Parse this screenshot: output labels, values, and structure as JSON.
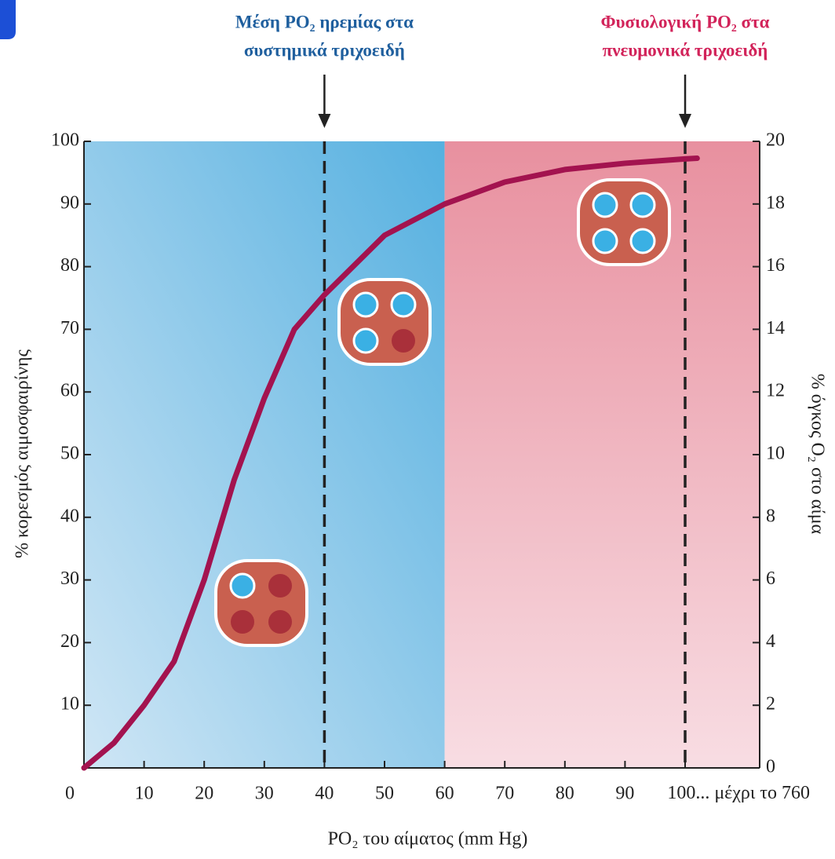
{
  "chart_data": {
    "type": "line",
    "x": [
      0,
      5,
      10,
      15,
      20,
      25,
      30,
      35,
      40,
      50,
      60,
      70,
      80,
      90,
      100,
      102
    ],
    "values": [
      0,
      4,
      10,
      17,
      30,
      46,
      59,
      70,
      75.5,
      85,
      90,
      93.5,
      95.5,
      96.5,
      97.2,
      97.3
    ],
    "color": "#a3134f",
    "xlim": [
      0,
      112.4
    ],
    "ylim": [
      0,
      100
    ],
    "y2lim": [
      0,
      20
    ],
    "xticks": [
      0,
      10,
      20,
      30,
      40,
      50,
      60,
      70,
      80,
      90,
      {
        "value": 100,
        "label": "100... μέχρι το 760"
      }
    ],
    "yticks": [
      10,
      20,
      30,
      40,
      50,
      60,
      70,
      80,
      90,
      100
    ],
    "y2ticks": [
      0,
      2,
      4,
      6,
      8,
      10,
      12,
      14,
      16,
      18,
      20
    ],
    "xlabel": "PO₂ του αίματος (mm Hg)",
    "ylabel": "% κορεσμός αιμοσφαιρίνης",
    "y2label": "% όγκος O₂ στο αίμα",
    "bands": [
      {
        "from": 0,
        "to": 60,
        "colors": [
          "#55b0e0",
          "#cfe6f5"
        ]
      },
      {
        "from": 60,
        "to": 112.4,
        "colors": [
          "#e8909f",
          "#f8dde3"
        ]
      }
    ],
    "annotations": [
      {
        "x": 40,
        "color": "#1f5f9e",
        "lines": [
          "Μέση PO₂ ηρεμίας στα",
          "συστημικά τριχοειδή"
        ]
      },
      {
        "x": 100,
        "color": "#d2235a",
        "lines": [
          "Φυσιολογική PO₂ στα",
          "πνευμονικά τριχοειδή"
        ]
      }
    ]
  }
}
